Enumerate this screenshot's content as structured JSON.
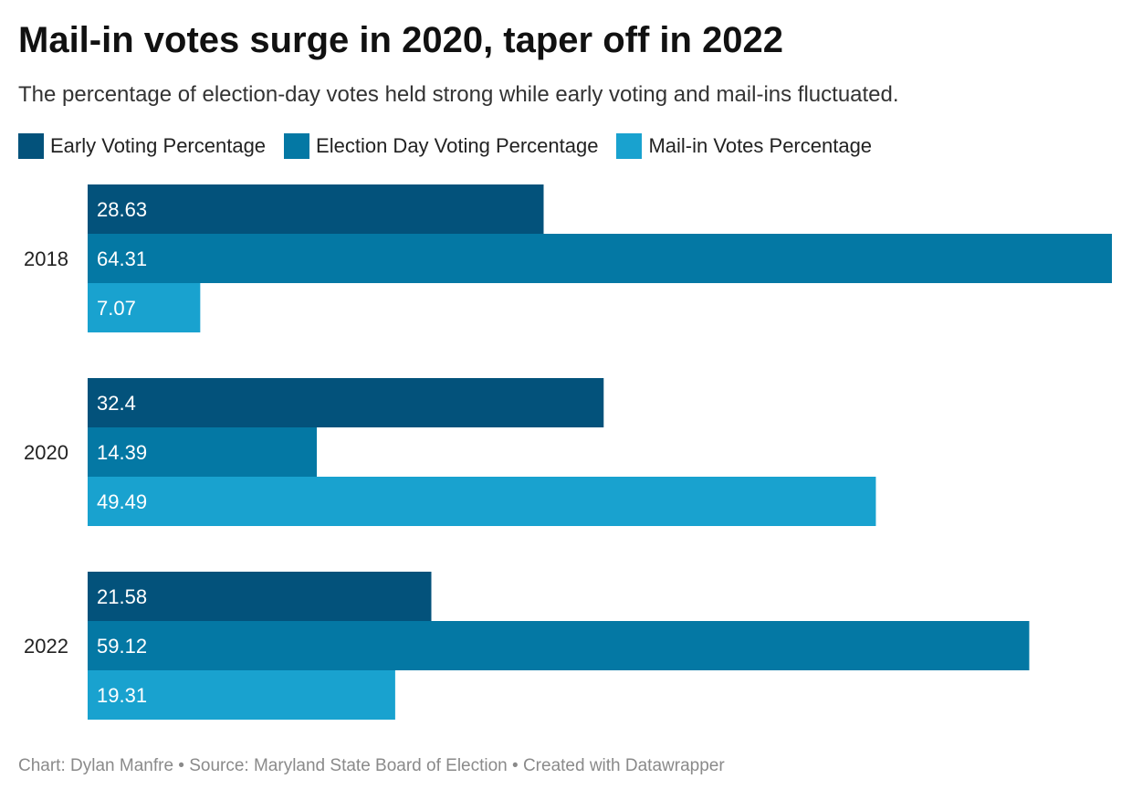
{
  "header": {
    "title": "Mail-in votes surge in 2020, taper off in 2022",
    "subtitle": "The percentage of election-day votes held strong while early voting and mail-ins fluctuated."
  },
  "footer": {
    "credit": "Chart: Dylan Manfre • Source: Maryland State Board of Election • Created with Datawrapper"
  },
  "chart_data": {
    "type": "bar",
    "orientation": "horizontal",
    "categories": [
      "2018",
      "2020",
      "2022"
    ],
    "series": [
      {
        "name": "Early Voting Percentage",
        "color": "#03527b",
        "values": [
          28.63,
          32.4,
          21.58
        ]
      },
      {
        "name": "Election Day Voting Percentage",
        "color": "#0478a4",
        "values": [
          64.31,
          14.39,
          59.12
        ]
      },
      {
        "name": "Mail-in Votes Percentage",
        "color": "#19a2cf",
        "values": [
          7.07,
          49.49,
          19.31
        ]
      }
    ],
    "title": "Mail-in votes surge in 2020, taper off in 2022",
    "xlabel": "",
    "ylabel": "",
    "legend": "top-left",
    "grid": false,
    "data_labels": "inside-bar-start"
  }
}
